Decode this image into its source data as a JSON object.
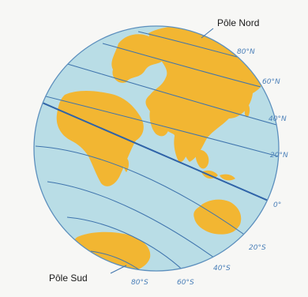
{
  "figure": {
    "north_pole_label": "Pôle Nord",
    "south_pole_label": "Pôle Sud",
    "latitude_labels": {
      "lat_80n": "80°N",
      "lat_60n": "60°N",
      "lat_40n": "40°N",
      "lat_20n": "20°N",
      "lat_0": "0°",
      "lat_20s": "20°S",
      "lat_40s": "40°S",
      "lat_60s": "60°S",
      "lat_80s": "80°S"
    },
    "colors": {
      "ocean": "#b9dde6",
      "land": "#f2b632",
      "lines": "#3f74ad",
      "equator": "#2f63a8",
      "globe_edge": "#5c8fbd",
      "labels": "#4a7fb8"
    }
  }
}
